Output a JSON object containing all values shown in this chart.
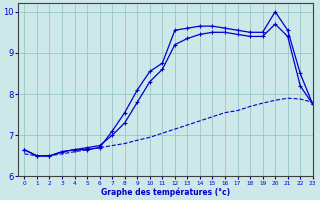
{
  "xlabel": "Graphe des températures (°c)",
  "bg_color": "#cce8e8",
  "line_color": "#0000cc",
  "xlim": [
    -0.5,
    23
  ],
  "ylim": [
    6,
    10.2
  ],
  "yticks": [
    6,
    7,
    8,
    9,
    10
  ],
  "xticks": [
    0,
    1,
    2,
    3,
    4,
    5,
    6,
    7,
    8,
    9,
    10,
    11,
    12,
    13,
    14,
    15,
    16,
    17,
    18,
    19,
    20,
    21,
    22,
    23
  ],
  "curve1_x": [
    0,
    1,
    2,
    3,
    4,
    5,
    6,
    7,
    8,
    9,
    10,
    11,
    12,
    13,
    14,
    15,
    16,
    17,
    18,
    19,
    20,
    21,
    22,
    23
  ],
  "curve1_y": [
    6.65,
    6.5,
    6.5,
    6.6,
    6.65,
    6.65,
    6.7,
    7.1,
    7.55,
    8.1,
    8.55,
    8.75,
    9.55,
    9.6,
    9.65,
    9.65,
    9.6,
    9.55,
    9.5,
    9.5,
    10.0,
    9.55,
    8.5,
    7.75
  ],
  "curve2_x": [
    0,
    1,
    2,
    3,
    4,
    5,
    6,
    7,
    8,
    9,
    10,
    11,
    12,
    13,
    14,
    15,
    16,
    17,
    18,
    19,
    20,
    21,
    22,
    23
  ],
  "curve2_y": [
    6.65,
    6.5,
    6.5,
    6.6,
    6.65,
    6.7,
    6.75,
    7.0,
    7.3,
    7.8,
    8.3,
    8.6,
    9.2,
    9.35,
    9.45,
    9.5,
    9.5,
    9.45,
    9.4,
    9.4,
    9.7,
    9.4,
    8.2,
    7.75
  ],
  "curve3_x": [
    0,
    1,
    2,
    3,
    4,
    5,
    6,
    7,
    8,
    9,
    10,
    11,
    12,
    13,
    14,
    15,
    16,
    17,
    18,
    19,
    20,
    21,
    22,
    23
  ],
  "curve3_y": [
    6.55,
    6.5,
    6.5,
    6.55,
    6.6,
    6.65,
    6.7,
    6.75,
    6.8,
    6.88,
    6.95,
    7.05,
    7.15,
    7.25,
    7.35,
    7.45,
    7.55,
    7.6,
    7.7,
    7.78,
    7.85,
    7.9,
    7.88,
    7.8
  ]
}
